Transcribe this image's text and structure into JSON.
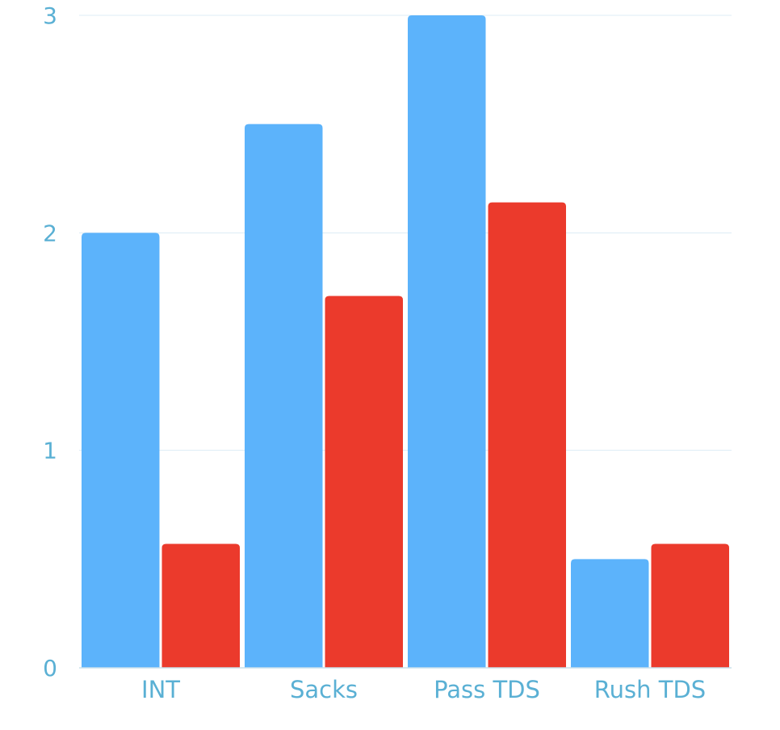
{
  "chart_data": {
    "type": "bar",
    "title": "",
    "xlabel": "",
    "ylabel": "",
    "categories": [
      "INT",
      "Sacks",
      "Pass TDS",
      "Rush TDS"
    ],
    "series": [
      {
        "values": [
          2.0,
          2.5,
          3.0,
          0.5
        ]
      },
      {
        "values": [
          0.57,
          1.71,
          2.14,
          0.57
        ]
      }
    ],
    "ylim": [
      0,
      3
    ],
    "yticks": [
      "0",
      "1",
      "2",
      "3"
    ],
    "grid": true,
    "legend": "none"
  },
  "colors": {
    "series": [
      "#5cb3fb",
      "#eb3a2c"
    ],
    "axis_text": "#5ab0d4",
    "grid": "#dcecf4",
    "baseline": "#c8e0ec"
  }
}
